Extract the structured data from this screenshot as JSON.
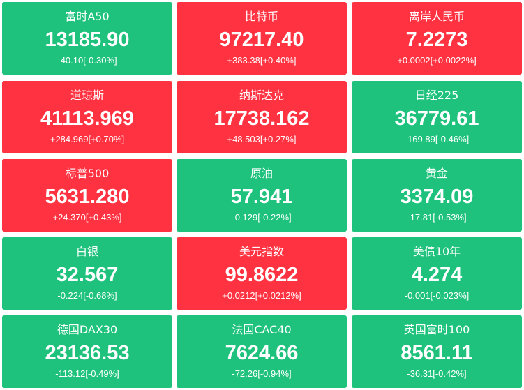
{
  "tiles": [
    {
      "name": "富时A50",
      "price": "13185.90",
      "change": "-40.10[-0.30%]",
      "color": "#1ec27c"
    },
    {
      "name": "比特币",
      "price": "97217.40",
      "change": "+383.38[+0.40%]",
      "color": "#fe3240"
    },
    {
      "name": "离岸人民币",
      "price": "7.2273",
      "change": "+0.0002[+0.0022%]",
      "color": "#fe3240"
    },
    {
      "name": "道琼斯",
      "price": "41113.969",
      "change": "+284.969[+0.70%]",
      "color": "#fe3240"
    },
    {
      "name": "纳斯达克",
      "price": "17738.162",
      "change": "+48.503[+0.27%]",
      "color": "#fe3240"
    },
    {
      "name": "日经225",
      "price": "36779.61",
      "change": "-169.89[-0.46%]",
      "color": "#1ec27c"
    },
    {
      "name": "标普500",
      "price": "5631.280",
      "change": "+24.370[+0.43%]",
      "color": "#fe3240"
    },
    {
      "name": "原油",
      "price": "57.941",
      "change": "-0.129[-0.22%]",
      "color": "#1ec27c"
    },
    {
      "name": "黄金",
      "price": "3374.09",
      "change": "-17.81[-0.53%]",
      "color": "#1ec27c"
    },
    {
      "name": "白银",
      "price": "32.567",
      "change": "-0.224[-0.68%]",
      "color": "#1ec27c"
    },
    {
      "name": "美元指数",
      "price": "99.8622",
      "change": "+0.0212[+0.0212%]",
      "color": "#fe3240"
    },
    {
      "name": "美债10年",
      "price": "4.274",
      "change": "-0.001[-0.023%]",
      "color": "#1ec27c"
    },
    {
      "name": "德国DAX30",
      "price": "23136.53",
      "change": "-113.12[-0.49%]",
      "color": "#1ec27c"
    },
    {
      "name": "法国CAC40",
      "price": "7624.66",
      "change": "-72.26[-0.94%]",
      "color": "#1ec27c"
    },
    {
      "name": "英国富时100",
      "price": "8561.11",
      "change": "-36.31[-0.42%]",
      "color": "#1ec27c"
    }
  ]
}
